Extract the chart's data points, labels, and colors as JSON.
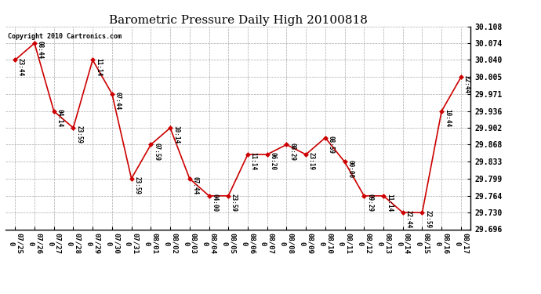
{
  "title": "Barometric Pressure Daily High 20100818",
  "copyright": "Copyright 2010 Cartronics.com",
  "x_labels": [
    "07/25\n0",
    "07/26\n0",
    "07/27\n0",
    "07/28\n0",
    "07/29\n0",
    "07/30\n0",
    "07/31\n0",
    "08/01\n0",
    "08/02\n0",
    "08/03\n0",
    "08/04\n0",
    "08/05\n0",
    "08/06\n0",
    "08/07\n0",
    "08/08\n0",
    "08/09\n0",
    "08/10\n0",
    "08/11\n0",
    "08/12\n0",
    "08/13\n0",
    "08/14\n0",
    "08/15\n0",
    "08/16\n0",
    "08/17\n0"
  ],
  "y_values": [
    30.04,
    30.074,
    29.936,
    29.902,
    30.04,
    29.971,
    29.799,
    29.868,
    29.902,
    29.799,
    29.764,
    29.764,
    29.848,
    29.848,
    29.868,
    29.848,
    29.882,
    29.833,
    29.764,
    29.764,
    29.73,
    29.73,
    29.936,
    30.005
  ],
  "point_labels": [
    "23:44",
    "08:44",
    "04:14",
    "23:59",
    "11:14",
    "07:44",
    "23:59",
    "07:59",
    "10:14",
    "07:44",
    "04:00",
    "23:59",
    "11:14",
    "06:20",
    "08:29",
    "23:19",
    "08:59",
    "00:00",
    "09:29",
    "11:14",
    "22:44",
    "22:59",
    "10:44",
    "22:44"
  ],
  "line_color": "#cc0000",
  "marker_color": "#cc0000",
  "bg_color": "#ffffff",
  "grid_color": "#aaaaaa",
  "title_fontsize": 11,
  "ylim_min": 29.696,
  "ylim_max": 30.108,
  "yticks": [
    29.696,
    29.73,
    29.764,
    29.799,
    29.833,
    29.868,
    29.902,
    29.936,
    29.971,
    30.005,
    30.04,
    30.074,
    30.108
  ]
}
